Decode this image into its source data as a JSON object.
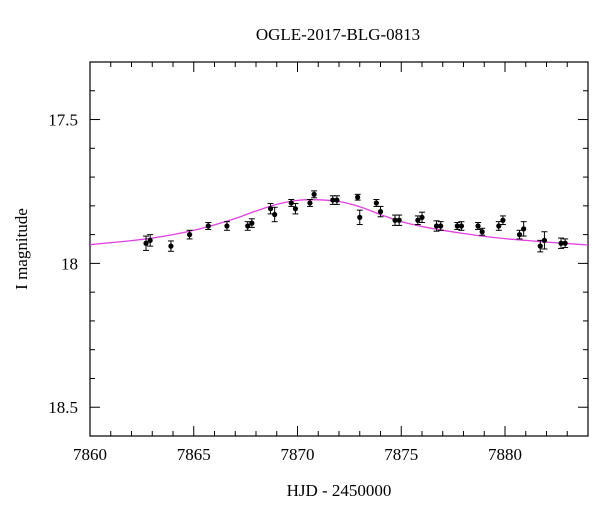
{
  "chart_data": {
    "type": "scatter",
    "title": "OGLE-2017-BLG-0813",
    "xlabel": "HJD - 2450000",
    "ylabel": "I magnitude",
    "xlim": [
      7860,
      7884
    ],
    "ylim": [
      18.6,
      17.3
    ],
    "y_inverted": true,
    "grid": false,
    "x_ticks": [
      7860,
      7865,
      7870,
      7875,
      7880
    ],
    "x_tick_labels": [
      "7860",
      "7865",
      "7870",
      "7875",
      "7880"
    ],
    "y_ticks": [
      17.5,
      18,
      18.5
    ],
    "y_tick_labels": [
      "17.5",
      "18",
      "18.5"
    ],
    "points": [
      {
        "x": 7862.7,
        "y": 17.93,
        "err": 0.025
      },
      {
        "x": 7862.9,
        "y": 17.92,
        "err": 0.02
      },
      {
        "x": 7863.9,
        "y": 17.94,
        "err": 0.018
      },
      {
        "x": 7864.8,
        "y": 17.9,
        "err": 0.015
      },
      {
        "x": 7865.7,
        "y": 17.87,
        "err": 0.012
      },
      {
        "x": 7866.6,
        "y": 17.87,
        "err": 0.015
      },
      {
        "x": 7867.6,
        "y": 17.87,
        "err": 0.015
      },
      {
        "x": 7867.8,
        "y": 17.86,
        "err": 0.015
      },
      {
        "x": 7868.7,
        "y": 17.81,
        "err": 0.018
      },
      {
        "x": 7868.9,
        "y": 17.83,
        "err": 0.025
      },
      {
        "x": 7869.7,
        "y": 17.79,
        "err": 0.012
      },
      {
        "x": 7869.9,
        "y": 17.81,
        "err": 0.018
      },
      {
        "x": 7870.6,
        "y": 17.79,
        "err": 0.012
      },
      {
        "x": 7870.8,
        "y": 17.76,
        "err": 0.012
      },
      {
        "x": 7871.7,
        "y": 17.78,
        "err": 0.015
      },
      {
        "x": 7871.9,
        "y": 17.78,
        "err": 0.015
      },
      {
        "x": 7872.9,
        "y": 17.77,
        "err": 0.01
      },
      {
        "x": 7873.0,
        "y": 17.84,
        "err": 0.025
      },
      {
        "x": 7873.8,
        "y": 17.79,
        "err": 0.012
      },
      {
        "x": 7874.0,
        "y": 17.82,
        "err": 0.018
      },
      {
        "x": 7874.7,
        "y": 17.85,
        "err": 0.018
      },
      {
        "x": 7874.9,
        "y": 17.85,
        "err": 0.018
      },
      {
        "x": 7875.8,
        "y": 17.85,
        "err": 0.015
      },
      {
        "x": 7876.0,
        "y": 17.84,
        "err": 0.018
      },
      {
        "x": 7876.7,
        "y": 17.87,
        "err": 0.018
      },
      {
        "x": 7876.9,
        "y": 17.87,
        "err": 0.015
      },
      {
        "x": 7877.7,
        "y": 17.87,
        "err": 0.012
      },
      {
        "x": 7877.9,
        "y": 17.87,
        "err": 0.015
      },
      {
        "x": 7878.7,
        "y": 17.87,
        "err": 0.012
      },
      {
        "x": 7878.9,
        "y": 17.89,
        "err": 0.012
      },
      {
        "x": 7879.7,
        "y": 17.87,
        "err": 0.015
      },
      {
        "x": 7879.9,
        "y": 17.85,
        "err": 0.015
      },
      {
        "x": 7880.7,
        "y": 17.9,
        "err": 0.015
      },
      {
        "x": 7880.9,
        "y": 17.88,
        "err": 0.025
      },
      {
        "x": 7881.7,
        "y": 17.94,
        "err": 0.02
      },
      {
        "x": 7881.9,
        "y": 17.92,
        "err": 0.03
      },
      {
        "x": 7882.7,
        "y": 17.93,
        "err": 0.018
      },
      {
        "x": 7882.9,
        "y": 17.93,
        "err": 0.015
      }
    ],
    "model_curve": {
      "color": "#e040e0",
      "x": [
        7860,
        7861,
        7862,
        7863,
        7864,
        7865,
        7866,
        7867,
        7868,
        7869,
        7870,
        7871,
        7872,
        7873,
        7874,
        7875,
        7876,
        7877,
        7878,
        7879,
        7880,
        7881,
        7882,
        7883,
        7884
      ],
      "y": [
        17.935,
        17.928,
        17.921,
        17.912,
        17.9,
        17.885,
        17.866,
        17.844,
        17.818,
        17.795,
        17.781,
        17.779,
        17.785,
        17.803,
        17.83,
        17.855,
        17.872,
        17.885,
        17.896,
        17.906,
        17.914,
        17.92,
        17.926,
        17.931,
        17.936
      ]
    },
    "point_color": "#000000"
  }
}
